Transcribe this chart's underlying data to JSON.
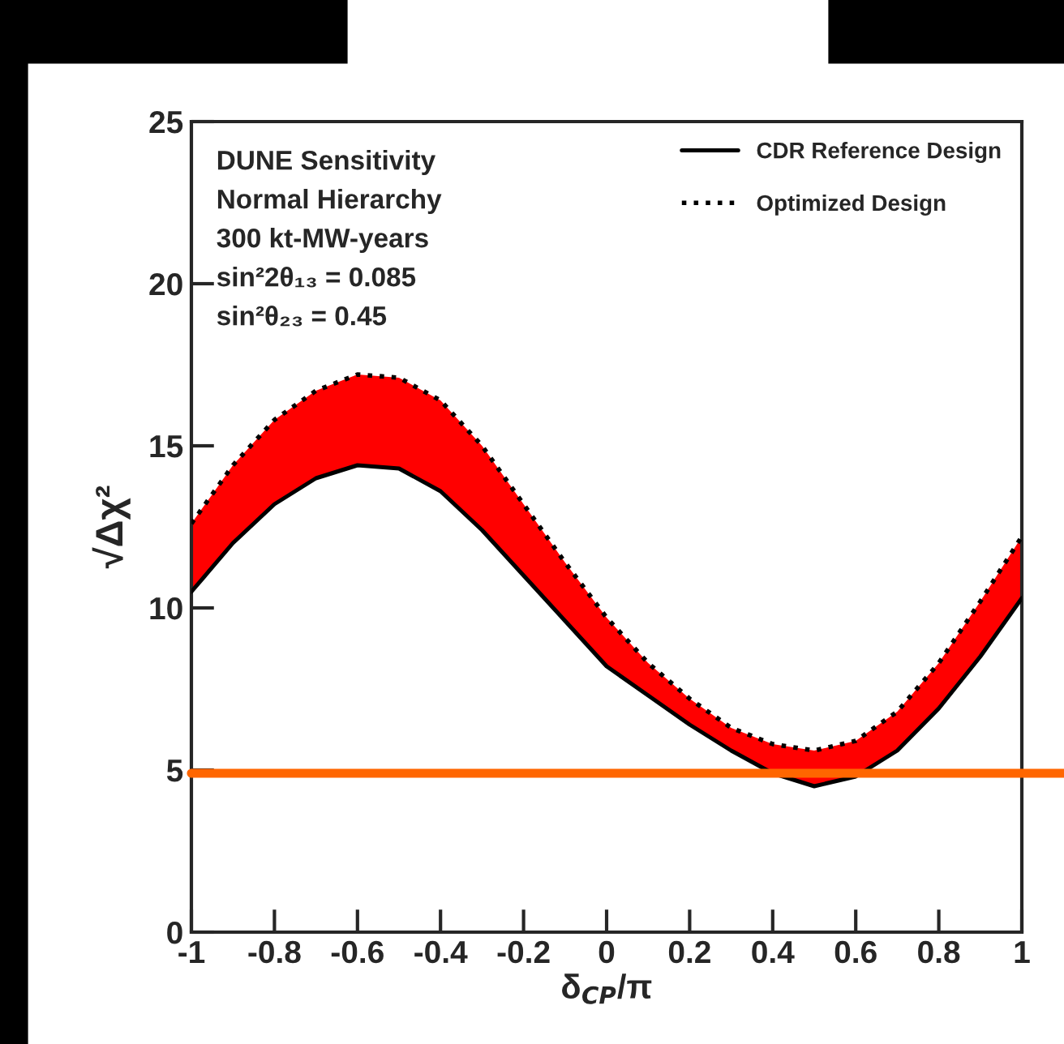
{
  "chart_data": {
    "type": "line",
    "xlabel": "δ$_{CP}$/π",
    "ylabel": "√Δχ²",
    "x": [
      -1,
      -0.9,
      -0.8,
      -0.7,
      -0.6,
      -0.5,
      -0.4,
      -0.3,
      -0.2,
      -0.1,
      0,
      0.1,
      0.2,
      0.3,
      0.4,
      0.5,
      0.6,
      0.7,
      0.8,
      0.9,
      1
    ],
    "series": [
      {
        "name": "CDR Reference Design",
        "color": "#000000",
        "line_style": "solid",
        "upper": [
          12.6,
          14.4,
          15.8,
          16.7,
          17.2,
          17.1,
          16.4,
          15.0,
          13.2,
          11.4,
          9.7,
          8.3,
          7.2,
          6.3,
          5.8,
          5.6,
          5.9,
          6.8,
          8.3,
          10.2,
          12.2
        ],
        "lower": [
          10.5,
          12.0,
          13.2,
          14.0,
          14.4,
          14.3,
          13.6,
          12.4,
          11.0,
          9.6,
          8.2,
          7.3,
          6.4,
          5.6,
          4.9,
          4.5,
          4.8,
          5.6,
          6.9,
          8.5,
          10.3
        ],
        "values": [
          10.5,
          12.0,
          13.2,
          14.0,
          14.4,
          14.3,
          13.6,
          12.4,
          11.0,
          9.6,
          8.2,
          7.3,
          6.4,
          5.6,
          4.9,
          4.5,
          4.8,
          5.6,
          6.9,
          8.5,
          10.3
        ]
      },
      {
        "name": "Optimized Design",
        "color": "#000000",
        "line_style": "dotted",
        "values": [
          12.6,
          14.4,
          15.8,
          16.7,
          17.2,
          17.1,
          16.4,
          15.0,
          13.2,
          11.4,
          9.7,
          8.3,
          7.2,
          6.3,
          5.8,
          5.6,
          5.9,
          6.8,
          8.3,
          10.2,
          12.2
        ]
      }
    ],
    "xlim": [
      -1,
      1
    ],
    "ylim": [
      0,
      25
    ],
    "xticks": [
      -1,
      -0.8,
      -0.6,
      -0.4,
      -0.2,
      0,
      0.2,
      0.4,
      0.6,
      0.8,
      1
    ],
    "yticks": [
      0,
      5,
      10,
      15,
      20,
      25
    ],
    "ref_lines": [
      {
        "axis": "y",
        "value": 4.9,
        "color": "#ff6600"
      }
    ],
    "annotations": [
      "DUNE Sensitivity",
      "Normal Hierarchy",
      "300 kt-MW-years",
      "sin²2θ₁₃ = 0.085",
      "sin²θ₂₃ = 0.45"
    ],
    "legend": "top right",
    "grid": false
  }
}
